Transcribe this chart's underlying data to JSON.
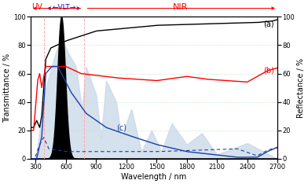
{
  "xlim": [
    250,
    2700
  ],
  "ylim": [
    0,
    100
  ],
  "xlabel": "Wavelength / nm",
  "ylabel_left": "Transmittance / %",
  "ylabel_right": "Reflectance / %",
  "yticks": [
    0,
    20,
    40,
    60,
    80,
    100
  ],
  "xticks": [
    300,
    600,
    900,
    1200,
    1500,
    1800,
    2100,
    2400,
    2700
  ],
  "uv_label": "UV",
  "vlt_label": "←VLT→",
  "nir_label": "NIR",
  "uv_color": "red",
  "vlt_color": "#1010cc",
  "nir_color": "red",
  "uv_vlt_boundary": 380,
  "vlt_nir_boundary": 780,
  "label_a": "(a)",
  "label_b": "(b)",
  "label_c": "(c)",
  "color_a": "black",
  "color_b": "red",
  "color_c": "#1a3faa",
  "color_reflectance": "#1a3faa",
  "background_color": "white",
  "grid_color": "#99cc99",
  "axis_fontsize": 7,
  "tick_fontsize": 6,
  "label_fontsize": 7
}
